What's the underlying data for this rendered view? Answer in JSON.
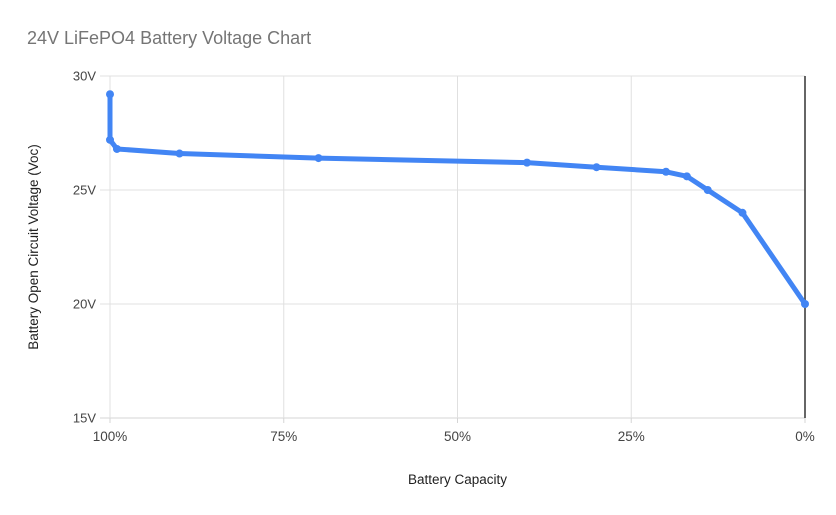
{
  "page": {
    "title": "24V LiFePO4 Battery Voltage Chart"
  },
  "colors": {
    "line": "#4285f4",
    "title_text": "#757575",
    "grid": "#e0e0e0",
    "bottom_axis": "#d5d5d5",
    "zero_baseline": "#333333",
    "tick_text": "#444444",
    "axis_title_text": "#1f1f1f",
    "background": "#ffffff"
  },
  "chart_data": {
    "type": "line",
    "title": "24V LiFePO4 Battery Voltage Chart",
    "xlabel": "Battery Capacity",
    "ylabel": "Battery Open Circuit Voltage (Voc)",
    "x_axis_reversed": true,
    "xlim": [
      100,
      0
    ],
    "ylim": [
      15,
      30
    ],
    "x_tick_labels": [
      "100%",
      "75%",
      "50%",
      "25%",
      "0%"
    ],
    "x_tick_values": [
      100,
      75,
      50,
      25,
      0
    ],
    "y_tick_labels": [
      "30V",
      "25V",
      "20V",
      "15V"
    ],
    "y_tick_values": [
      30,
      25,
      20,
      15
    ],
    "grid": true,
    "legend_position": "none",
    "series": [
      {
        "name": "Battery Open Circuit Voltage (Voc)",
        "color": "#4285f4",
        "points": [
          {
            "capacity_pct": 100,
            "voltage": 29.2
          },
          {
            "capacity_pct": 100,
            "voltage": 27.2
          },
          {
            "capacity_pct": 99,
            "voltage": 26.8
          },
          {
            "capacity_pct": 90,
            "voltage": 26.6
          },
          {
            "capacity_pct": 70,
            "voltage": 26.4
          },
          {
            "capacity_pct": 40,
            "voltage": 26.2
          },
          {
            "capacity_pct": 30,
            "voltage": 26.0
          },
          {
            "capacity_pct": 20,
            "voltage": 25.8
          },
          {
            "capacity_pct": 17,
            "voltage": 25.6
          },
          {
            "capacity_pct": 14,
            "voltage": 25.0
          },
          {
            "capacity_pct": 9,
            "voltage": 24.0
          },
          {
            "capacity_pct": 0,
            "voltage": 20.0
          }
        ]
      }
    ]
  }
}
